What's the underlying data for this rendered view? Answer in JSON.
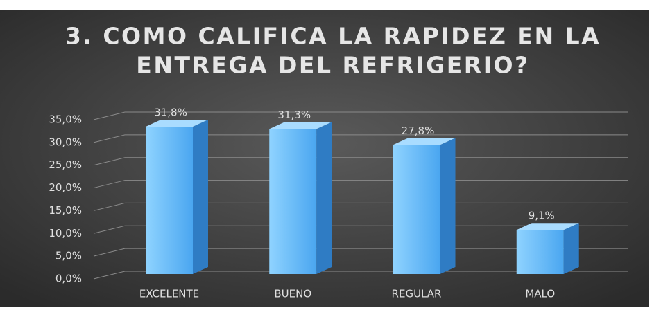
{
  "chart_data": {
    "type": "bar3d",
    "title": [
      "3. COMO CALIFICA LA RAPIDEZ EN LA",
      "ENTREGA DEL REFRIGERIO?"
    ],
    "categories": [
      "EXCELENTE",
      "BUENO",
      "REGULAR",
      "MALO"
    ],
    "values": [
      31.8,
      31.3,
      27.8,
      9.1
    ],
    "value_labels": [
      "31,8%",
      "31,3%",
      "27,8%",
      "9,1%"
    ],
    "color": "#5ab4f5",
    "ylim": [
      0,
      35
    ],
    "yticks": [
      {
        "value": 0,
        "label": "0,0%"
      },
      {
        "value": 5,
        "label": "5,0%"
      },
      {
        "value": 10,
        "label": "10,0%"
      },
      {
        "value": 15,
        "label": "15,0%"
      },
      {
        "value": 20,
        "label": "20,0%"
      },
      {
        "value": 25,
        "label": "25,0%"
      },
      {
        "value": 30,
        "label": "30,0%"
      },
      {
        "value": 35,
        "label": "35,0%"
      }
    ],
    "grid": true
  }
}
